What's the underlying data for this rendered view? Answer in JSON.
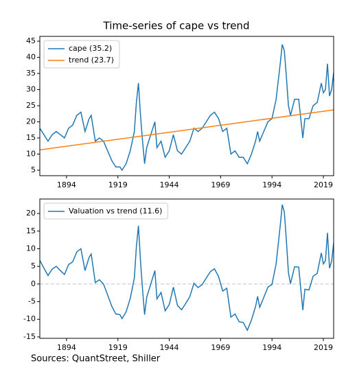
{
  "chart_data": [
    {
      "type": "line",
      "title": "Time-series of cape vs trend",
      "xlim": [
        1881,
        2024
      ],
      "xticks": [
        1894,
        1919,
        1944,
        1969,
        1994,
        2019
      ],
      "ylim": [
        3.3,
        46.5
      ],
      "yticks": [
        5,
        10,
        15,
        20,
        25,
        30,
        35,
        40,
        45
      ],
      "legend": "upper left",
      "series": [
        {
          "name": "cape (35.2)",
          "color": "#1f77b4",
          "x": [
            1881,
            1883,
            1885,
            1887,
            1889,
            1891,
            1893,
            1895,
            1897,
            1899,
            1901,
            1903,
            1905,
            1906,
            1908,
            1910,
            1912,
            1914,
            1916,
            1918,
            1920,
            1921,
            1923,
            1925,
            1927,
            1928,
            1929,
            1930,
            1931,
            1932,
            1933,
            1935,
            1937,
            1938,
            1940,
            1942,
            1944,
            1946,
            1948,
            1950,
            1952,
            1954,
            1956,
            1958,
            1960,
            1962,
            1964,
            1966,
            1968,
            1970,
            1972,
            1974,
            1976,
            1978,
            1980,
            1982,
            1984,
            1986,
            1987,
            1988,
            1990,
            1992,
            1994,
            1996,
            1998,
            1999,
            2000,
            2001,
            2002,
            2003,
            2005,
            2007,
            2009,
            2010,
            2012,
            2014,
            2016,
            2018,
            2019,
            2020,
            2021,
            2022,
            2023,
            2024
          ],
          "values": [
            18,
            16,
            14,
            16,
            17,
            16,
            15,
            18,
            19,
            22,
            23,
            17,
            21,
            22,
            14,
            15,
            14,
            11,
            8,
            6,
            6,
            5,
            7,
            11,
            17,
            26,
            32,
            22,
            14,
            7,
            12,
            16,
            20,
            12,
            14,
            9,
            11,
            16,
            11,
            10,
            12,
            14,
            18,
            17,
            18,
            20,
            22,
            23,
            21,
            17,
            18,
            10,
            11,
            9,
            9,
            7,
            10,
            14,
            17,
            14,
            17,
            20,
            21,
            27,
            38,
            44,
            42,
            34,
            25,
            22,
            27,
            27,
            15,
            21,
            21,
            25,
            26,
            32,
            29,
            30,
            38,
            28,
            30,
            35.2
          ]
        },
        {
          "name": "trend (23.7)",
          "color": "#ff7f0e",
          "x": [
            1881,
            2024
          ],
          "values": [
            11.3,
            23.7
          ]
        }
      ]
    },
    {
      "type": "line",
      "xlim": [
        1881,
        2024
      ],
      "xticks": [
        1894,
        1919,
        1944,
        1969,
        1994,
        2019
      ],
      "ylim": [
        -15.4,
        24.1
      ],
      "yticks": [
        -15,
        -10,
        -5,
        0,
        5,
        10,
        15,
        20
      ],
      "legend": "upper left",
      "reference_line": 0,
      "series": [
        {
          "name": "Valuation vs trend (11.6)",
          "color": "#1f77b4",
          "x": [
            1881,
            1883,
            1885,
            1887,
            1889,
            1891,
            1893,
            1895,
            1897,
            1899,
            1901,
            1903,
            1905,
            1906,
            1908,
            1910,
            1912,
            1914,
            1916,
            1918,
            1920,
            1921,
            1923,
            1925,
            1927,
            1928,
            1929,
            1930,
            1931,
            1932,
            1933,
            1935,
            1937,
            1938,
            1940,
            1942,
            1944,
            1946,
            1948,
            1950,
            1952,
            1954,
            1956,
            1958,
            1960,
            1962,
            1964,
            1966,
            1968,
            1970,
            1972,
            1974,
            1976,
            1978,
            1980,
            1982,
            1984,
            1986,
            1987,
            1988,
            1990,
            1992,
            1994,
            1996,
            1998,
            1999,
            2000,
            2001,
            2002,
            2003,
            2005,
            2007,
            2009,
            2010,
            2012,
            2014,
            2016,
            2018,
            2019,
            2020,
            2021,
            2022,
            2023,
            2024
          ],
          "values": [
            6.7,
            4.5,
            2.4,
            4.2,
            5.0,
            3.8,
            2.7,
            5.5,
            6.3,
            9.1,
            10.0,
            3.8,
            7.6,
            8.5,
            0.4,
            1.2,
            0,
            -3.1,
            -6.3,
            -8.5,
            -8.7,
            -9.8,
            -7.9,
            -4.1,
            1.7,
            10.6,
            16.5,
            6.5,
            -1.6,
            -8.7,
            -3.8,
            0,
            3.8,
            -4.2,
            -2.4,
            -7.6,
            -5.8,
            -0.9,
            -6.1,
            -7.3,
            -5.5,
            -3.6,
            0.2,
            -1.0,
            -0.2,
            1.7,
            3.5,
            4.3,
            2.1,
            -2.0,
            -1.2,
            -9.4,
            -8.5,
            -10.7,
            -10.9,
            -13.1,
            -10.2,
            -6.4,
            -3.5,
            -6.6,
            -3.8,
            -0.9,
            -0.1,
            5.7,
            16.5,
            22.5,
            20.4,
            12.3,
            3.2,
            0.1,
            4.9,
            4.8,
            -7.4,
            -1.5,
            -1.7,
            2.2,
            3.0,
            8.8,
            5.7,
            6.6,
            14.5,
            4.5,
            6.4,
            11.6
          ]
        }
      ]
    }
  ],
  "source": "Sources: QuantStreet, Shiller"
}
